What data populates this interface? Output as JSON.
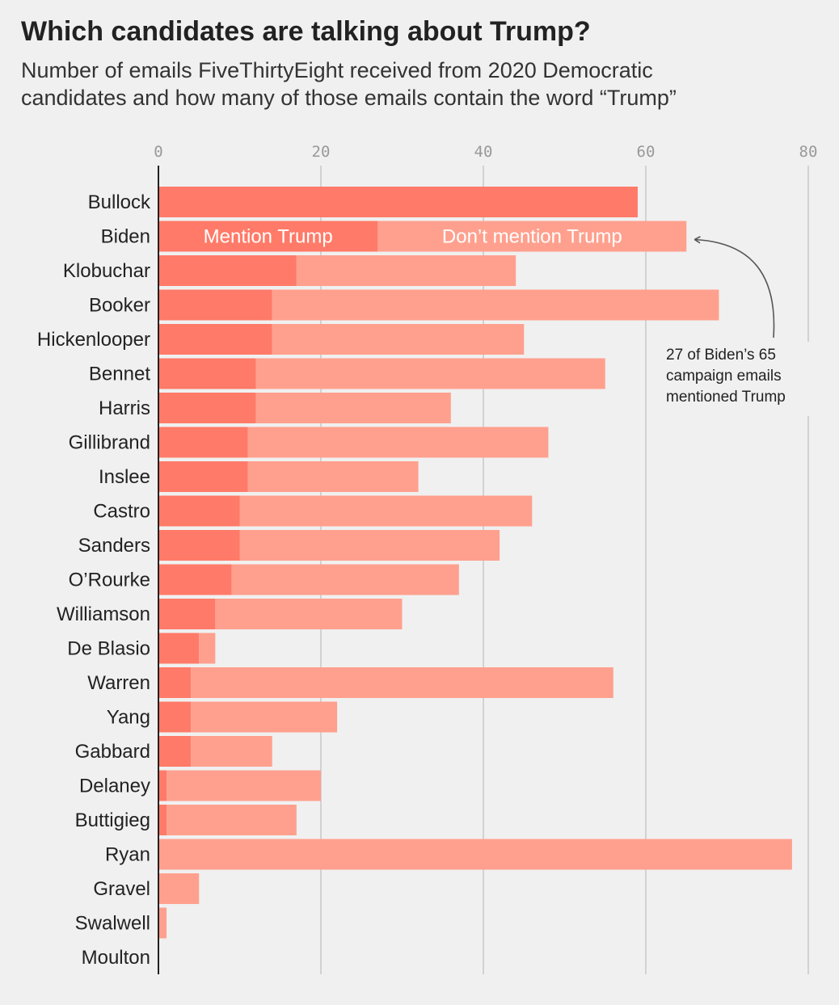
{
  "chart_data": {
    "type": "bar",
    "orientation": "horizontal",
    "stacked": true,
    "title": "Which candidates are talking about Trump?",
    "subtitle": "Number of emails FiveThirtyEight received from 2020 Democratic\ncandidates and how many of those emails contain the word “Trump”",
    "xlim": [
      0,
      80
    ],
    "xticks": [
      0,
      20,
      40,
      60,
      80
    ],
    "grid": true,
    "categories": [
      "Bullock",
      "Biden",
      "Klobuchar",
      "Booker",
      "Hickenlooper",
      "Bennet",
      "Harris",
      "Gillibrand",
      "Inslee",
      "Castro",
      "Sanders",
      "O’Rourke",
      "Williamson",
      "De Blasio",
      "Warren",
      "Yang",
      "Gabbard",
      "Delaney",
      "Buttigieg",
      "Ryan",
      "Gravel",
      "Swalwell",
      "Moulton"
    ],
    "series": [
      {
        "name": "Mention Trump",
        "color": "#ff7a68",
        "values": [
          59,
          27,
          17,
          14,
          14,
          12,
          12,
          11,
          11,
          10,
          10,
          9,
          7,
          5,
          4,
          4,
          4,
          1,
          1,
          0,
          0,
          0,
          0
        ]
      },
      {
        "name": "Don’t mention Trump",
        "color": "#ffa08e",
        "values": [
          0,
          38,
          27,
          55,
          31,
          43,
          24,
          37,
          21,
          36,
          32,
          28,
          23,
          2,
          52,
          18,
          10,
          19,
          16,
          78,
          5,
          1,
          0
        ]
      }
    ],
    "annotation": {
      "text_lines": [
        "27 of Biden’s 65",
        "campaign emails",
        "mentioned Trump"
      ],
      "target": "Biden"
    }
  }
}
